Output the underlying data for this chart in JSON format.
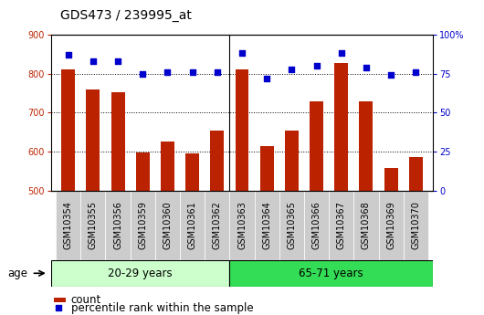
{
  "title": "GDS473 / 239995_at",
  "samples": [
    "GSM10354",
    "GSM10355",
    "GSM10356",
    "GSM10359",
    "GSM10360",
    "GSM10361",
    "GSM10362",
    "GSM10363",
    "GSM10364",
    "GSM10365",
    "GSM10366",
    "GSM10367",
    "GSM10368",
    "GSM10369",
    "GSM10370"
  ],
  "counts": [
    810,
    760,
    752,
    597,
    625,
    595,
    655,
    810,
    613,
    655,
    728,
    828,
    730,
    558,
    585
  ],
  "percentiles": [
    87,
    83,
    83,
    75,
    76,
    76,
    76,
    88,
    72,
    78,
    80,
    88,
    79,
    74,
    76
  ],
  "group1_label": "20-29 years",
  "group2_label": "65-71 years",
  "group1_count": 7,
  "group2_count": 8,
  "age_label": "age",
  "ylim_left": [
    500,
    900
  ],
  "ylim_right": [
    0,
    100
  ],
  "yticks_left": [
    500,
    600,
    700,
    800,
    900
  ],
  "yticks_right": [
    0,
    25,
    50,
    75,
    100
  ],
  "bar_color": "#bb2200",
  "dot_color": "#0000cc",
  "group1_bg": "#ccffcc",
  "group2_bg": "#33dd55",
  "tick_bg": "#cccccc",
  "legend_count_label": "count",
  "legend_pct_label": "percentile rank within the sample",
  "title_fontsize": 10,
  "tick_fontsize": 7.0,
  "legend_fontsize": 8.5,
  "band_fontsize": 8.5,
  "age_fontsize": 8.5
}
